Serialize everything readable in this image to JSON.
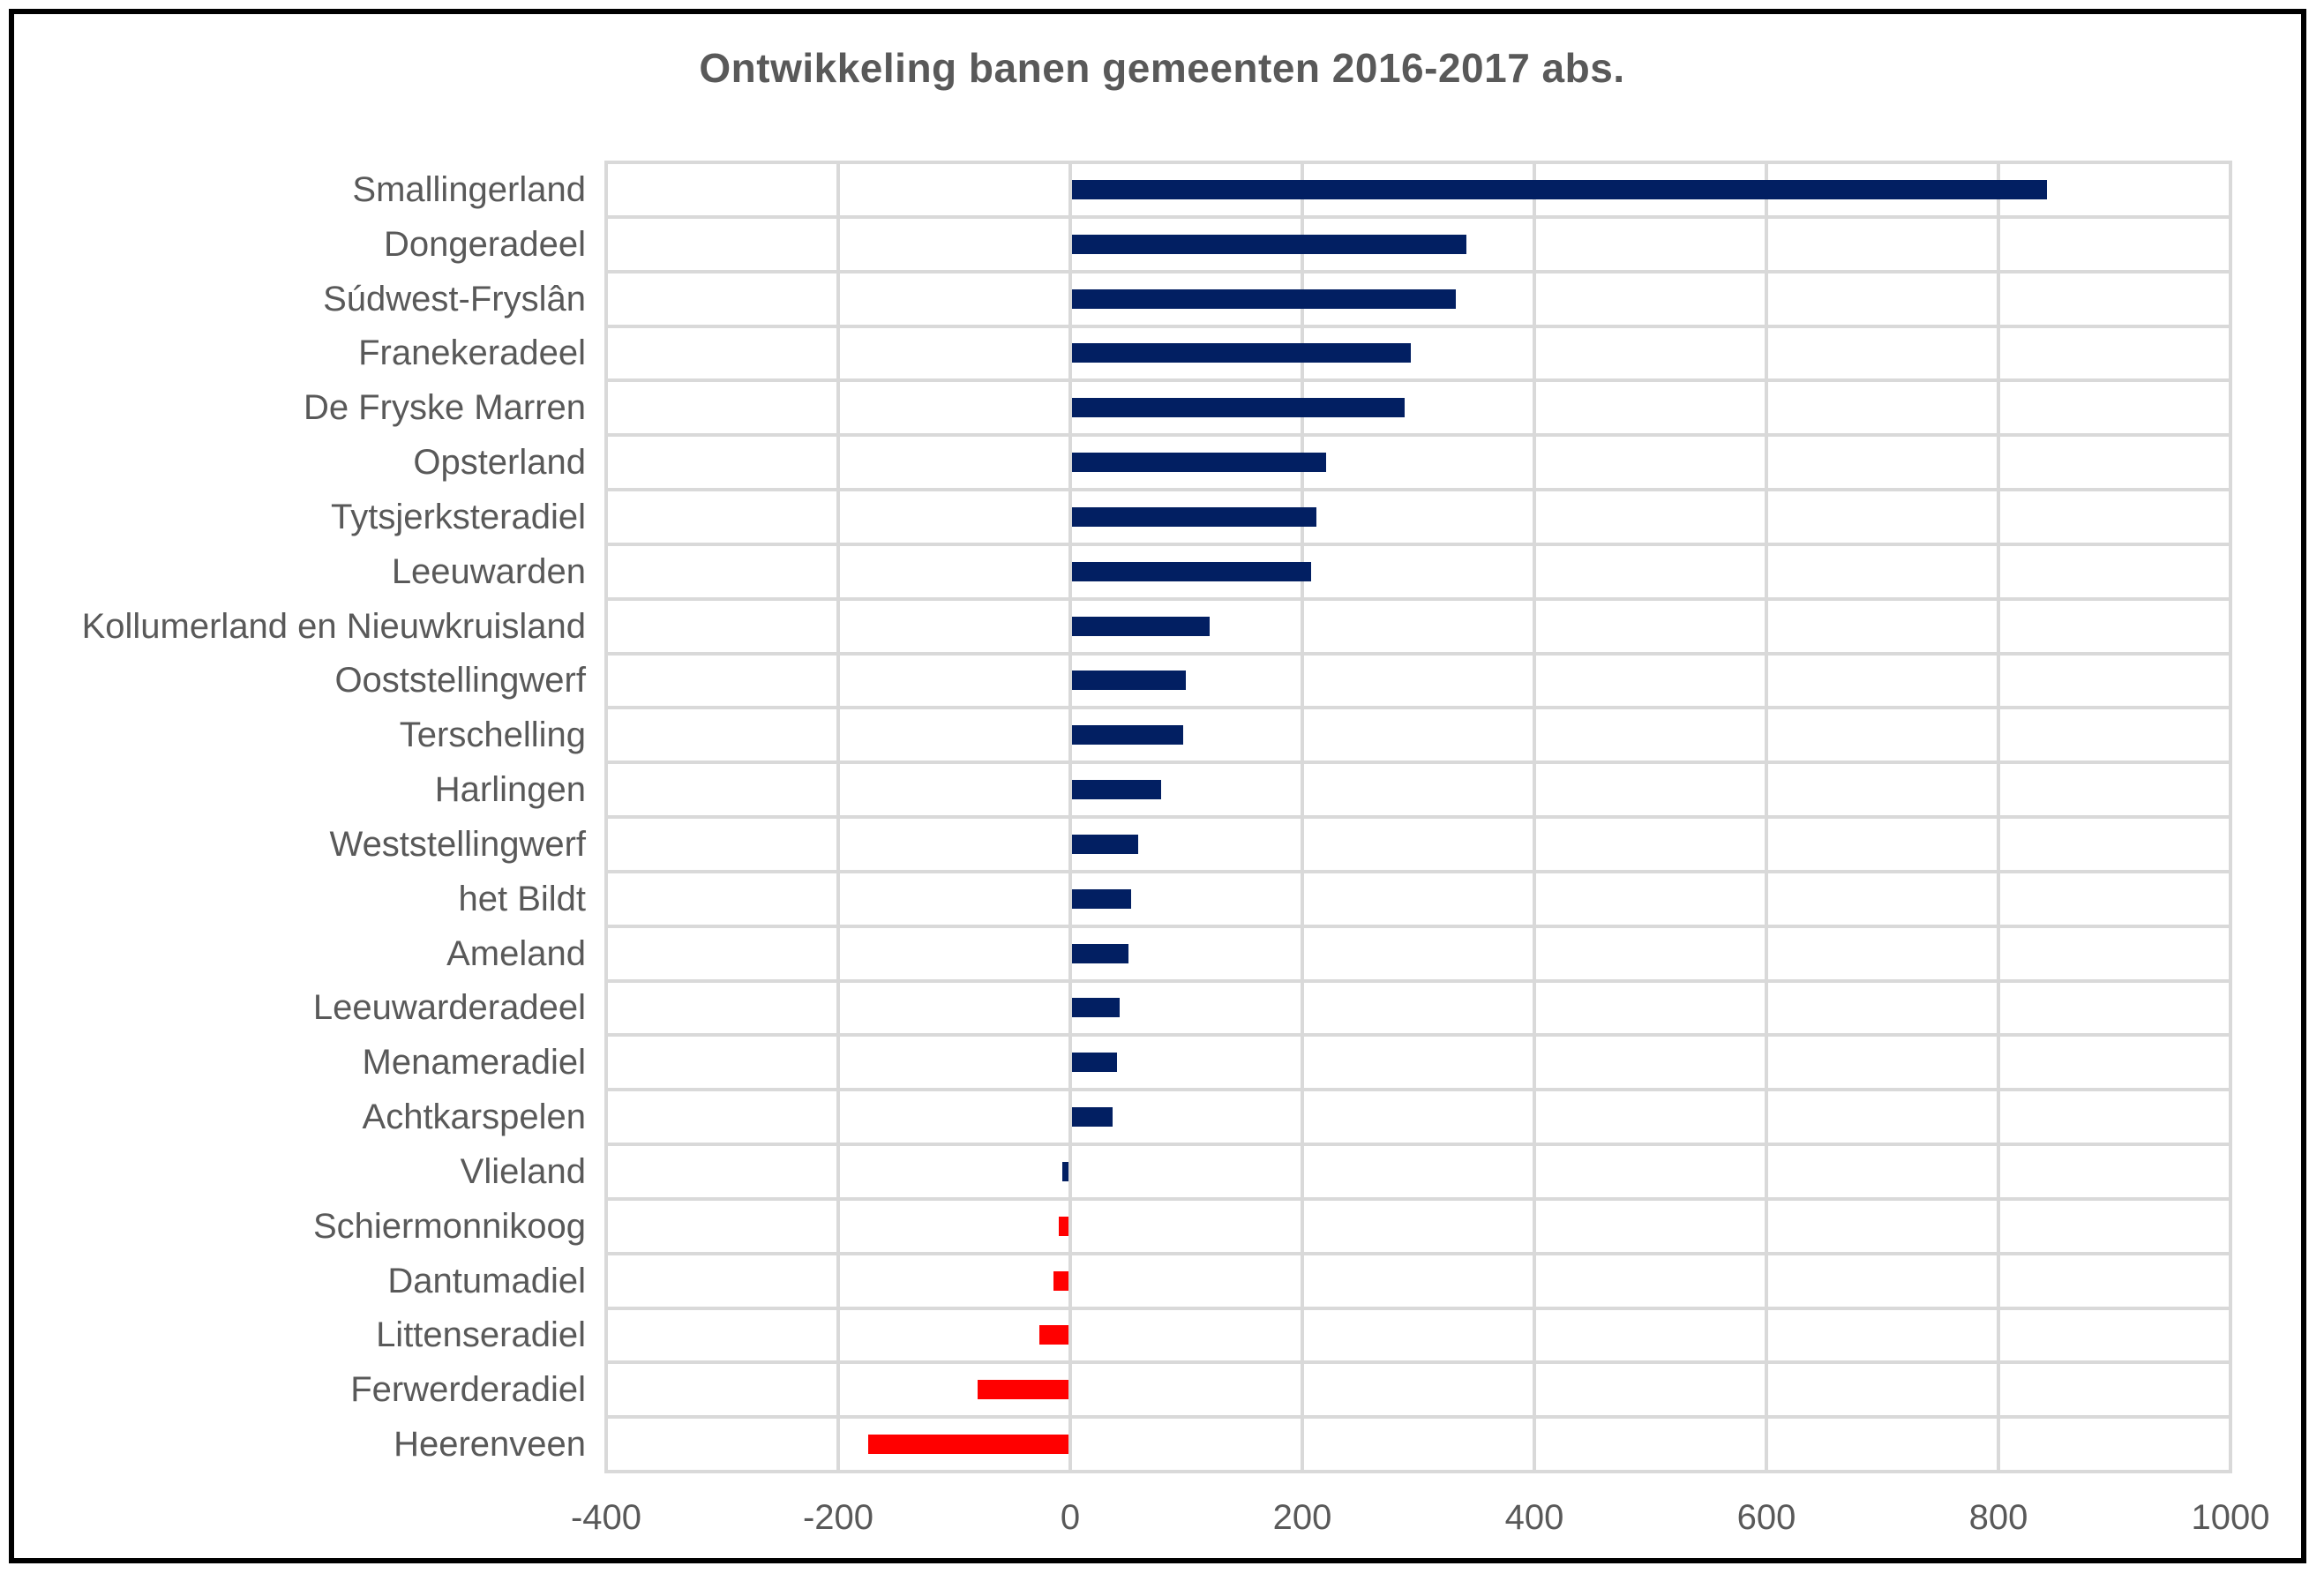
{
  "window": {
    "background": "#ffffff",
    "frame_border_color": "#000000"
  },
  "chart_data": {
    "type": "bar",
    "orientation": "horizontal",
    "title": "Ontwikkeling banen gemeenten 2016-2017 abs.",
    "categories": [
      "Smallingerland",
      "Dongeradeel",
      "Súdwest-Fryslân",
      "Franekeradeel",
      "De Fryske Marren",
      "Opsterland",
      "Tytsjerksteradiel",
      "Leeuwarden",
      "Kollumerland en Nieuwkruisland",
      "Ooststellingwerf",
      "Terschelling",
      "Harlingen",
      "Weststellingwerf",
      "het Bildt",
      "Ameland",
      "Leeuwarderadeel",
      "Menameradiel",
      "Achtkarspelen",
      "Vlieland",
      "Schiermonnikoog",
      "Dantumadiel",
      "Littenseradiel",
      "Ferwerderadiel",
      "Heerenveen"
    ],
    "values": [
      840,
      340,
      331,
      292,
      287,
      219,
      211,
      206,
      119,
      98,
      96,
      77,
      57,
      51,
      49,
      41,
      39,
      35,
      -5,
      -8,
      -13,
      -25,
      -78,
      -173
    ],
    "bar_colors": [
      "#021f62",
      "#021f62",
      "#021f62",
      "#021f62",
      "#021f62",
      "#021f62",
      "#021f62",
      "#021f62",
      "#021f62",
      "#021f62",
      "#021f62",
      "#021f62",
      "#021f62",
      "#021f62",
      "#021f62",
      "#021f62",
      "#021f62",
      "#021f62",
      "#021f62",
      "#ff0000",
      "#ff0000",
      "#ff0000",
      "#ff0000",
      "#ff0000"
    ],
    "xlim": [
      -400,
      1000
    ],
    "x_ticks": [
      -400,
      -200,
      0,
      200,
      400,
      600,
      800,
      1000
    ],
    "x_tick_labels": [
      "-400",
      "-200",
      "0",
      "200",
      "400",
      "600",
      "800",
      "1000"
    ],
    "grid": true,
    "legend_position": "none",
    "colors": {
      "positive": "#021f62",
      "negative": "#ff0000",
      "gridline": "#d9d9d9",
      "axis_text": "#595959",
      "title_text": "#595959"
    }
  }
}
